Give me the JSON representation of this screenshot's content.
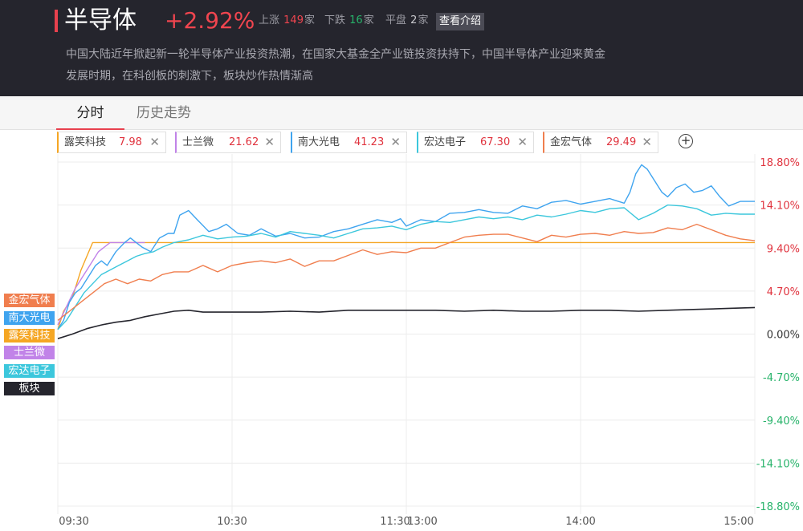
{
  "header": {
    "title": "半导体",
    "change": "+2.92%",
    "up_label": "上涨",
    "up_count": "149",
    "down_label": "下跌",
    "down_count": "16",
    "flat_label": "平盘",
    "flat_count": "2",
    "unit": "家",
    "intro_button": "查看介绍",
    "description": "中国大陆近年掀起新一轮半导体产业投资热潮，在国家大基金全产业链投资扶持下，中国半导体产业迎来黄金发展时期，在科创板的刺激下，板块炒作热情渐高"
  },
  "tabs": [
    {
      "label": "分时",
      "active": true
    },
    {
      "label": "历史走势",
      "active": false
    }
  ],
  "stocks": [
    {
      "name": "露笑科技",
      "price": "7.98",
      "color": "#f5a623"
    },
    {
      "name": "士兰微",
      "price": "21.62",
      "color": "#c183e8"
    },
    {
      "name": "南大光电",
      "price": "41.23",
      "color": "#3fa4ef"
    },
    {
      "name": "宏达电子",
      "price": "67.30",
      "color": "#3cc7dc"
    },
    {
      "name": "金宏气体",
      "price": "29.49",
      "color": "#f07e4e"
    }
  ],
  "close_icon": "close-icon",
  "add_icon": "plus-circle-icon",
  "legend_tags": [
    {
      "label": "金宏气体",
      "color": "#f07e4e"
    },
    {
      "label": "南大光电",
      "color": "#3fa4ef"
    },
    {
      "label": "露笑科技",
      "color": "#f5a623"
    },
    {
      "label": "士兰微",
      "color": "#c183e8"
    },
    {
      "label": "宏达电子",
      "color": "#3cc7dc"
    },
    {
      "label": "板块",
      "color": "#25252d"
    }
  ],
  "chart_data": {
    "type": "line",
    "x_ticks": [
      "09:30",
      "10:30",
      "11:30",
      "13:00",
      "14:00",
      "15:00"
    ],
    "y_ticks": [
      "18.80%",
      "14.10%",
      "9.40%",
      "4.70%",
      "0.00%",
      "-4.70%",
      "-9.40%",
      "-14.10%",
      "-18.80%"
    ],
    "ylim": [
      -18.8,
      18.8
    ],
    "grid": true,
    "series": [
      {
        "name": "露笑科技",
        "color": "#f5a623",
        "x": [
          0,
          2,
          5,
          8,
          12,
          18,
          30,
          60,
          120,
          180,
          240
        ],
        "y": [
          0.5,
          2.5,
          4,
          7,
          10,
          10,
          10,
          10,
          10,
          10,
          10
        ]
      },
      {
        "name": "士兰微",
        "color": "#c183e8",
        "x": [
          0,
          3,
          6,
          10,
          14,
          18,
          24,
          30
        ],
        "y": [
          1,
          3,
          5,
          7,
          9,
          10,
          10,
          10
        ]
      },
      {
        "name": "南大光电",
        "color": "#3fa4ef",
        "x": [
          0,
          2,
          4,
          6,
          8,
          10,
          13,
          15,
          17,
          20,
          23,
          25,
          27,
          29,
          32,
          35,
          38,
          40,
          42,
          45,
          48,
          52,
          55,
          58,
          62,
          66,
          70,
          75,
          80,
          85,
          90,
          95,
          100,
          105,
          110,
          115,
          118,
          120,
          125,
          130,
          135,
          140,
          145,
          150,
          155,
          160,
          165,
          170,
          175,
          180,
          185,
          190,
          195,
          197,
          199,
          201,
          203,
          205,
          208,
          210,
          213,
          216,
          219,
          222,
          225,
          228,
          231,
          235,
          240
        ],
        "y": [
          0.5,
          1.5,
          3.5,
          4.5,
          5,
          6,
          7.5,
          8,
          7.5,
          9,
          10,
          10.5,
          10,
          9.5,
          9,
          10.5,
          11,
          11,
          13,
          13.5,
          12.5,
          11.2,
          11.5,
          12,
          11,
          10.8,
          11.5,
          10.7,
          11,
          10.5,
          10.6,
          11.2,
          11.5,
          12,
          12.5,
          12.2,
          12.6,
          11.8,
          12.5,
          12.3,
          13.2,
          13.3,
          13.6,
          13.3,
          13.2,
          14,
          13.7,
          14.4,
          14.6,
          14.2,
          14.5,
          14.8,
          14.3,
          15.5,
          17.5,
          18.5,
          18,
          17,
          15.5,
          15,
          16,
          16.4,
          15.5,
          15.7,
          16.2,
          15,
          14,
          14.5,
          14.5
        ]
      },
      {
        "name": "宏达电子",
        "color": "#3cc7dc",
        "x": [
          0,
          3,
          6,
          9,
          12,
          15,
          18,
          21,
          24,
          27,
          30,
          33,
          36,
          40,
          45,
          50,
          55,
          60,
          65,
          70,
          75,
          80,
          85,
          90,
          95,
          100,
          105,
          110,
          115,
          120,
          125,
          130,
          135,
          140,
          145,
          150,
          155,
          160,
          165,
          170,
          175,
          180,
          185,
          190,
          195,
          200,
          205,
          210,
          215,
          220,
          225,
          230,
          235,
          240
        ],
        "y": [
          0.5,
          1.5,
          3,
          4.5,
          5.5,
          6.5,
          7,
          7.5,
          8,
          8.5,
          8.8,
          9,
          9.5,
          10,
          10.3,
          10.8,
          10.4,
          10.6,
          10.7,
          11,
          10.6,
          11.2,
          11,
          10.8,
          10.5,
          11,
          11.5,
          11.6,
          11.8,
          11.4,
          12,
          12.3,
          12.2,
          12.5,
          12.8,
          12.6,
          12.8,
          12.5,
          13,
          12.8,
          13.1,
          13.5,
          13.3,
          13.7,
          13.8,
          12.5,
          13.2,
          14.1,
          14,
          13.7,
          13,
          13.2,
          13.1,
          13.1
        ]
      },
      {
        "name": "金宏气体",
        "color": "#f07e4e",
        "x": [
          0,
          4,
          8,
          12,
          16,
          20,
          24,
          28,
          32,
          36,
          40,
          45,
          50,
          55,
          60,
          65,
          70,
          75,
          80,
          85,
          90,
          95,
          100,
          105,
          110,
          115,
          120,
          125,
          130,
          135,
          140,
          145,
          150,
          155,
          160,
          165,
          170,
          175,
          180,
          185,
          190,
          195,
          200,
          205,
          210,
          215,
          220,
          225,
          230,
          235,
          240
        ],
        "y": [
          1.5,
          2.5,
          3.5,
          4.5,
          5.5,
          6,
          5.5,
          6,
          5.8,
          6.5,
          6.8,
          6.8,
          7.5,
          6.8,
          7.5,
          7.8,
          8,
          7.8,
          8.2,
          7.4,
          8,
          8,
          8.6,
          9.2,
          8.7,
          9,
          8.9,
          9.4,
          9.4,
          10,
          10.6,
          10.8,
          10.9,
          10.9,
          10.5,
          10.1,
          10.8,
          10.6,
          10.9,
          11,
          10.8,
          11.2,
          11,
          11.1,
          11.6,
          11.4,
          12,
          11.4,
          10.8,
          10.4,
          10.2
        ]
      },
      {
        "name": "板块",
        "color": "#25252d",
        "x": [
          0,
          5,
          10,
          15,
          20,
          25,
          30,
          35,
          40,
          45,
          50,
          60,
          70,
          80,
          90,
          100,
          110,
          120,
          130,
          140,
          150,
          160,
          170,
          180,
          190,
          200,
          210,
          220,
          230,
          240
        ],
        "y": [
          -0.5,
          0,
          0.6,
          1,
          1.3,
          1.5,
          1.9,
          2.2,
          2.5,
          2.6,
          2.4,
          2.4,
          2.4,
          2.5,
          2.4,
          2.6,
          2.6,
          2.6,
          2.6,
          2.5,
          2.6,
          2.5,
          2.5,
          2.6,
          2.6,
          2.5,
          2.6,
          2.7,
          2.8,
          2.9
        ]
      }
    ]
  }
}
